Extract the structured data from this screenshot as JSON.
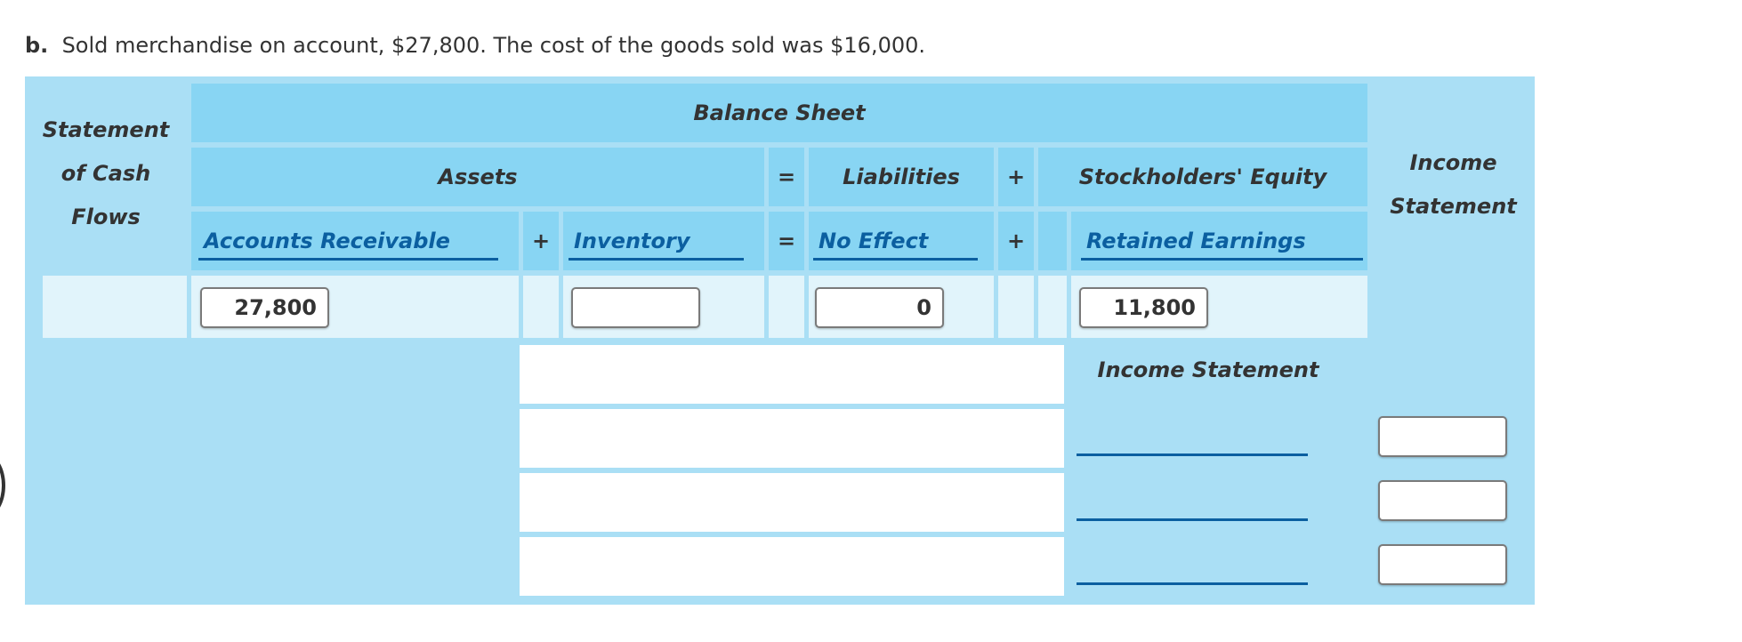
{
  "question": {
    "label": "b.",
    "text": "Sold merchandise on account, $27,800. The cost of the goods sold was $16,000."
  },
  "headers": {
    "statement_of_cash_flows": [
      "Statement",
      "of Cash",
      "Flows"
    ],
    "balance_sheet": "Balance Sheet",
    "assets": "Assets",
    "liabilities": "Liabilities",
    "stockholders_equity": "Stockholders' Equity",
    "income_statement_col": [
      "Income",
      "Statement"
    ],
    "income_statement_section": "Income Statement"
  },
  "symbols": {
    "equals": "=",
    "plus": "+"
  },
  "selects": {
    "accounts_receivable": "Accounts Receivable",
    "inventory": "Inventory",
    "liabilities_effect": "No Effect",
    "retained_earnings": "Retained Earnings"
  },
  "inputs": {
    "accounts_receivable": "27,800",
    "inventory": "",
    "liabilities": "0",
    "retained_earnings": "11,800",
    "income_statement": [
      "",
      "",
      ""
    ]
  },
  "colors": {
    "panel": "#aadff5",
    "header_cell": "#88d5f3",
    "input_row": "#e1f4fb",
    "link_blue": "#0b5fa0"
  }
}
